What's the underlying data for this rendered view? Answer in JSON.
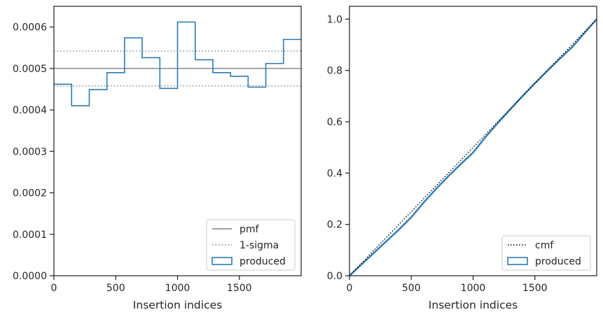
{
  "chart_data": [
    {
      "type": "line",
      "xlabel": "Insertion indices",
      "ylabel": "",
      "xlim": [
        0,
        2000
      ],
      "ylim": [
        0,
        0.00065
      ],
      "xticks": [
        0,
        500,
        1000,
        1500
      ],
      "xtick_labels": [
        "0",
        "500",
        "1000",
        "1500"
      ],
      "yticks": [
        0,
        0.0001,
        0.0002,
        0.0003,
        0.0004,
        0.0005,
        0.0006
      ],
      "ytick_labels": [
        "0.0000",
        "0.0001",
        "0.0002",
        "0.0003",
        "0.0004",
        "0.0005",
        "0.0006"
      ],
      "pmf": 0.0005,
      "sigma_band": [
        0.000458,
        0.000542
      ],
      "histogram": {
        "bin_edges": [
          0,
          143,
          286,
          429,
          571,
          714,
          857,
          1000,
          1143,
          1286,
          1429,
          1571,
          1714,
          1857,
          2000
        ],
        "values": [
          0.000462,
          0.00041,
          0.000449,
          0.00049,
          0.000574,
          0.000526,
          0.000452,
          0.000612,
          0.000521,
          0.00049,
          0.000481,
          0.000455,
          0.000512,
          0.00057
        ]
      },
      "legend": {
        "position": "lower right",
        "entries": [
          {
            "label": "pmf",
            "style": "solid-gray"
          },
          {
            "label": "1-sigma",
            "style": "dotted-gray"
          },
          {
            "label": "produced",
            "style": "patch-blue"
          }
        ]
      },
      "colors": {
        "produced": "#2b7bb9",
        "reference": "#808080"
      }
    },
    {
      "type": "line",
      "xlabel": "Insertion indices",
      "ylabel": "",
      "xlim": [
        0,
        2000
      ],
      "ylim": [
        0,
        1.05
      ],
      "xticks": [
        0,
        500,
        1000,
        1500
      ],
      "xtick_labels": [
        "0",
        "500",
        "1000",
        "1500"
      ],
      "yticks": [
        0,
        0.2,
        0.4,
        0.6,
        0.8,
        1.0
      ],
      "ytick_labels": [
        "0.0",
        "0.2",
        "0.4",
        "0.6",
        "0.8",
        "1.0"
      ],
      "cmf": {
        "x": [
          0,
          2000
        ],
        "y": [
          0,
          1
        ]
      },
      "produced": {
        "x": [
          0,
          100,
          200,
          300,
          400,
          500,
          600,
          700,
          800,
          900,
          1000,
          1100,
          1200,
          1300,
          1400,
          1500,
          1600,
          1700,
          1800,
          1900,
          2000
        ],
        "y": [
          0,
          0.045,
          0.09,
          0.135,
          0.18,
          0.228,
          0.285,
          0.338,
          0.388,
          0.435,
          0.48,
          0.54,
          0.595,
          0.648,
          0.7,
          0.75,
          0.798,
          0.845,
          0.89,
          0.945,
          1.0
        ]
      },
      "legend": {
        "position": "lower right",
        "entries": [
          {
            "label": "cmf",
            "style": "dotted-black"
          },
          {
            "label": "produced",
            "style": "patch-blue"
          }
        ]
      },
      "colors": {
        "produced": "#2b7bb9",
        "reference": "#000000"
      }
    }
  ]
}
